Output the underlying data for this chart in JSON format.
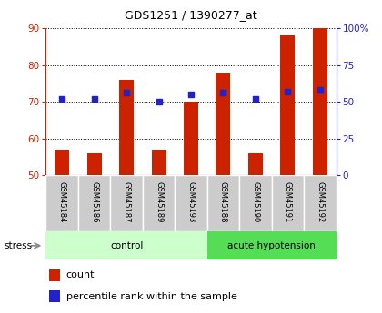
{
  "title": "GDS1251 / 1390277_at",
  "samples": [
    "GSM45184",
    "GSM45186",
    "GSM45187",
    "GSM45189",
    "GSM45193",
    "GSM45188",
    "GSM45190",
    "GSM45191",
    "GSM45192"
  ],
  "group_labels": [
    "control",
    "acute hypotension"
  ],
  "group_control_count": 5,
  "counts": [
    57,
    56,
    76,
    57,
    70,
    78,
    56,
    88,
    90
  ],
  "percentile_ranks": [
    52,
    52,
    56,
    50,
    55,
    56,
    52,
    57,
    58
  ],
  "ylim_left": [
    50,
    90
  ],
  "ylim_right": [
    0,
    100
  ],
  "yticks_left": [
    50,
    60,
    70,
    80,
    90
  ],
  "yticks_right": [
    0,
    25,
    50,
    75,
    100
  ],
  "ytick_right_labels": [
    "0",
    "25",
    "50",
    "75",
    "100%"
  ],
  "bar_color": "#cc2200",
  "dot_color": "#2222cc",
  "bar_width": 0.45,
  "bg_color": "#ffffff",
  "xlabel_color": "#cc2200",
  "ylabel_right_color": "#2222cc",
  "group_bg_control": "#ccffcc",
  "group_bg_acute": "#55dd55",
  "sample_cell_bg": "#cccccc",
  "stress_label": "stress",
  "legend_count_label": "count",
  "legend_percentile_label": "percentile rank within the sample",
  "title_fontsize": 9,
  "tick_fontsize": 7.5,
  "label_fontsize": 7.5,
  "legend_fontsize": 8
}
